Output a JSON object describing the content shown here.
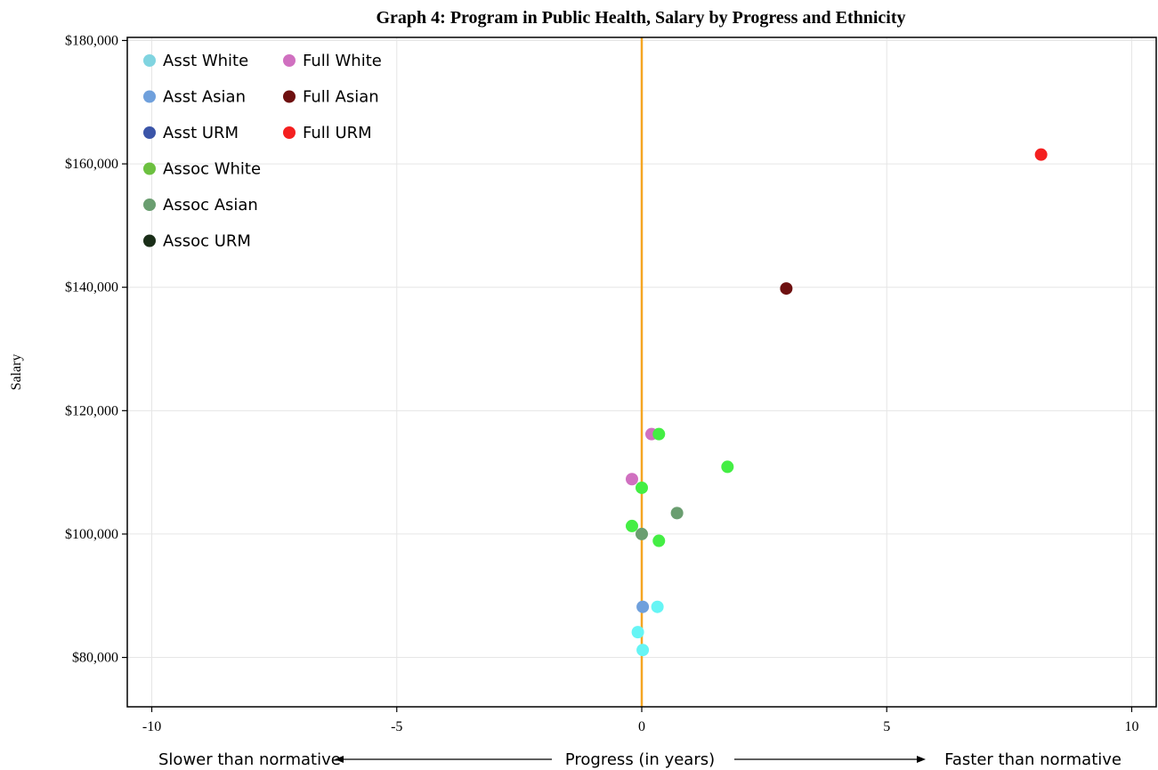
{
  "chart_data": {
    "type": "scatter",
    "title": "Graph 4: Program in Public Health, Salary by Progress and Ethnicity",
    "ylabel": "Salary",
    "xlabel": "Progress (in years)",
    "x_note_left": "Slower than normative",
    "x_note_right": "Faster than normative",
    "xlim": [
      -10.5,
      10.5
    ],
    "ylim": [
      72000,
      180500
    ],
    "x_ticks": [
      {
        "value": -10,
        "label": "-10"
      },
      {
        "value": -5,
        "label": "-5"
      },
      {
        "value": 0,
        "label": "0"
      },
      {
        "value": 5,
        "label": "5"
      },
      {
        "value": 10,
        "label": "10"
      }
    ],
    "y_ticks": [
      {
        "value": 80000,
        "label": "$80,000"
      },
      {
        "value": 100000,
        "label": "$100,000"
      },
      {
        "value": 120000,
        "label": "$120,000"
      },
      {
        "value": 140000,
        "label": "$140,000"
      },
      {
        "value": 160000,
        "label": "$160,000"
      },
      {
        "value": 180000,
        "label": "$180,000"
      }
    ],
    "grid": true,
    "reference_line": {
      "x": 0,
      "color": "#f5a623"
    },
    "legend_position": "top-left",
    "legend": [
      {
        "name": "Asst White",
        "color": "#80d4e0"
      },
      {
        "name": "Asst Asian",
        "color": "#6fa0dc"
      },
      {
        "name": "Asst URM",
        "color": "#3b55a8"
      },
      {
        "name": "Assoc White",
        "color": "#6cc040"
      },
      {
        "name": "Assoc Asian",
        "color": "#6a9e70"
      },
      {
        "name": "Assoc URM",
        "color": "#1a2e18"
      },
      {
        "name": "Full White",
        "color": "#d070c0"
      },
      {
        "name": "Full Asian",
        "color": "#6e1010"
      },
      {
        "name": "Full URM",
        "color": "#f42020"
      }
    ],
    "points": [
      {
        "series": "Full URM",
        "x": 8.15,
        "y": 161500,
        "color": "#f42020"
      },
      {
        "series": "Full Asian",
        "x": 2.95,
        "y": 139800,
        "color": "#6e1010"
      },
      {
        "series": "Full White",
        "x": 0.2,
        "y": 116200,
        "color": "#d070c0"
      },
      {
        "series": "Assoc White",
        "x": 0.35,
        "y": 116200,
        "color": "#44ee44"
      },
      {
        "series": "Assoc White",
        "x": 1.75,
        "y": 110900,
        "color": "#44ee44"
      },
      {
        "series": "Full White",
        "x": -0.2,
        "y": 108900,
        "color": "#d070c0"
      },
      {
        "series": "Assoc White",
        "x": 0.0,
        "y": 107500,
        "color": "#44ee44"
      },
      {
        "series": "Assoc Asian",
        "x": 0.72,
        "y": 103400,
        "color": "#6a9e70"
      },
      {
        "series": "Assoc White",
        "x": -0.2,
        "y": 101300,
        "color": "#44ee44"
      },
      {
        "series": "Assoc Asian",
        "x": 0.0,
        "y": 100000,
        "color": "#6a9e70"
      },
      {
        "series": "Assoc White",
        "x": 0.35,
        "y": 98900,
        "color": "#44ee44"
      },
      {
        "series": "Asst Asian",
        "x": 0.02,
        "y": 88200,
        "color": "#6fa0dc"
      },
      {
        "series": "Asst White",
        "x": 0.32,
        "y": 88200,
        "color": "#66f5f5"
      },
      {
        "series": "Asst White",
        "x": -0.08,
        "y": 84100,
        "color": "#66f5f5"
      },
      {
        "series": "Asst White",
        "x": 0.02,
        "y": 81200,
        "color": "#66f5f5"
      }
    ]
  }
}
